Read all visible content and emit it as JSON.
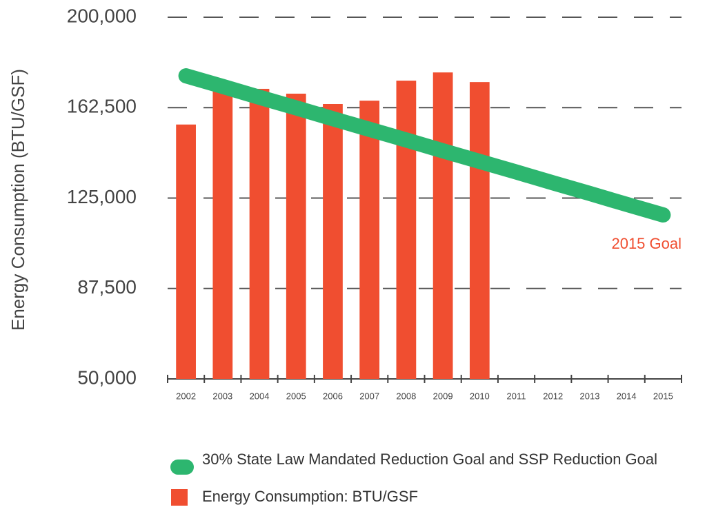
{
  "chart_data": {
    "type": "bar",
    "y_label": "Energy Consumption (BTU/GSF)",
    "categories": [
      "2002",
      "2003",
      "2004",
      "2005",
      "2006",
      "2007",
      "2008",
      "2009",
      "2010",
      "2011",
      "2012",
      "2013",
      "2014",
      "2015"
    ],
    "series": [
      {
        "name": "30% State Law Mandated Reduction Goal and SSP Reduction Goal",
        "type": "line",
        "color": "#2db66f",
        "values": [
          175700,
          171300,
          166800,
          162400,
          157900,
          153500,
          149100,
          144600,
          140200,
          135800,
          131300,
          126900,
          122400,
          118000
        ]
      },
      {
        "name": "Energy Consumption: BTU/GSF",
        "type": "bar",
        "color": "#f04e30",
        "values": [
          155500,
          171400,
          170300,
          168300,
          164000,
          165400,
          173700,
          177100,
          173100,
          null,
          null,
          null,
          null,
          null
        ]
      }
    ],
    "annotations": [
      "2015 Goal"
    ],
    "ylim": [
      50000,
      200000
    ],
    "yticks": [
      {
        "value": 50000,
        "label": "50,000"
      },
      {
        "value": 87500,
        "label": "87,500"
      },
      {
        "value": 125000,
        "label": "125,000"
      },
      {
        "value": 162500,
        "label": "162,500"
      },
      {
        "value": 200000,
        "label": "200,000"
      }
    ],
    "grid": true,
    "legend": "bottom"
  }
}
